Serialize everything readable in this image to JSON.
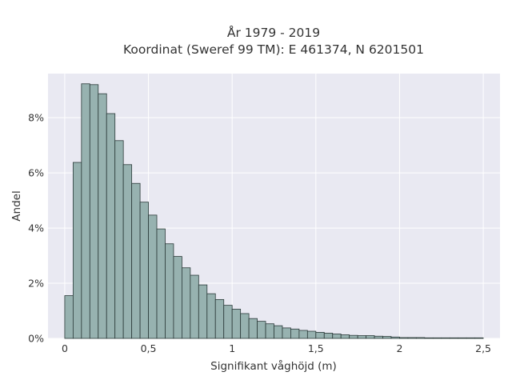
{
  "chart_data": {
    "type": "bar",
    "title_lines": [
      "År 1979 - 2019",
      "Koordinat (Sweref 99 TM): E 461374, N 6201501"
    ],
    "xlabel": "Signifikant våghöjd (m)",
    "ylabel": "Andel",
    "xlim": [
      -0.1,
      2.6
    ],
    "ylim": [
      0,
      9.6
    ],
    "x_ticks": [
      0,
      0.5,
      1,
      1.5,
      2,
      2.5
    ],
    "x_tick_labels": [
      "0",
      "0,5",
      "1",
      "1,5",
      "2",
      "2,5"
    ],
    "y_ticks": [
      0,
      2,
      4,
      6,
      8
    ],
    "y_tick_labels": [
      "0%",
      "2%",
      "4%",
      "6%",
      "8%"
    ],
    "bin_width": 0.05,
    "bin_starts": [
      0,
      0.05,
      0.1,
      0.15,
      0.2,
      0.25,
      0.3,
      0.35,
      0.4,
      0.45,
      0.5,
      0.55,
      0.6,
      0.65,
      0.7,
      0.75,
      0.8,
      0.85,
      0.9,
      0.95,
      1.0,
      1.05,
      1.1,
      1.15,
      1.2,
      1.25,
      1.3,
      1.35,
      1.4,
      1.45,
      1.5,
      1.55,
      1.6,
      1.65,
      1.7,
      1.75,
      1.8,
      1.85,
      1.9,
      1.95,
      2.0,
      2.05,
      2.1,
      2.15,
      2.2,
      2.25,
      2.3,
      2.35,
      2.4,
      2.45
    ],
    "values": [
      1.55,
      6.38,
      9.23,
      9.2,
      8.87,
      8.15,
      7.17,
      6.3,
      5.62,
      4.94,
      4.47,
      3.97,
      3.43,
      2.97,
      2.56,
      2.29,
      1.94,
      1.62,
      1.41,
      1.2,
      1.06,
      0.9,
      0.72,
      0.62,
      0.53,
      0.46,
      0.38,
      0.34,
      0.29,
      0.26,
      0.22,
      0.19,
      0.16,
      0.13,
      0.11,
      0.1,
      0.1,
      0.08,
      0.07,
      0.05,
      0.03,
      0.03,
      0.03,
      0.02,
      0.02,
      0.02,
      0.02,
      0.02,
      0.02,
      0.02
    ],
    "grid": true,
    "colors": {
      "bar_fill": "#97b2b0",
      "bar_edge": "#2b3a39",
      "plot_bg": "#e9e9f2",
      "grid": "#ffffff",
      "text": "#333333"
    }
  }
}
